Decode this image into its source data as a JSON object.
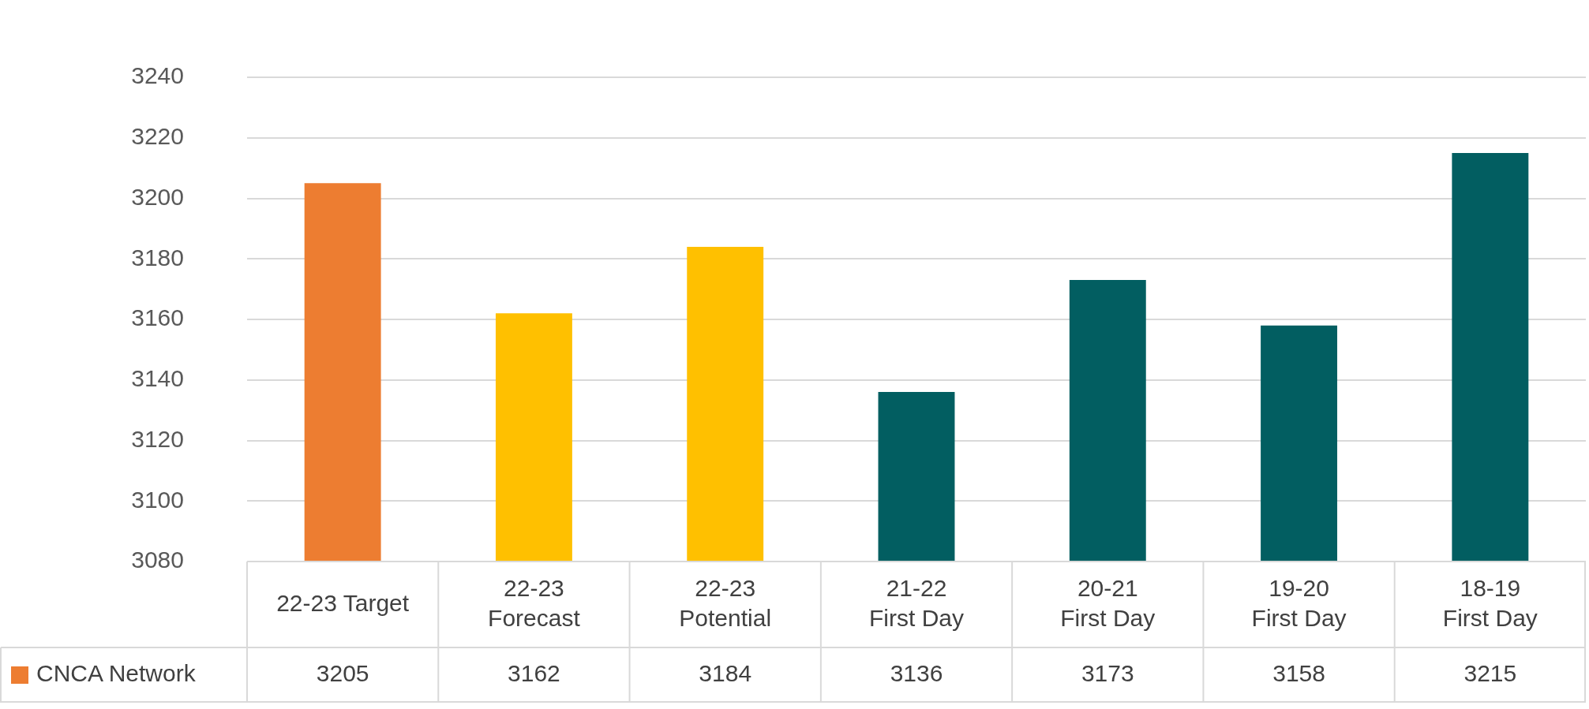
{
  "chart_data": {
    "type": "bar",
    "categories": [
      "22-23 Target",
      "22-23 Forecast",
      "22-23 Potential",
      "21-22 First Day",
      "20-21 First Day",
      "19-20 First Day",
      "18-19 First Day"
    ],
    "series": [
      {
        "name": "CNCA Network",
        "colors": [
          "#ed7d31",
          "#ffc000",
          "#ffc000",
          "#025e61",
          "#025e61",
          "#025e61",
          "#025e61"
        ],
        "values": [
          3205,
          3162,
          3184,
          3136,
          3173,
          3158,
          3215
        ]
      }
    ],
    "ylim": [
      3080,
      3240
    ],
    "yticks": [
      3080,
      3100,
      3120,
      3140,
      3160,
      3180,
      3200,
      3220,
      3240
    ],
    "grid": "y",
    "legend": "bottom left",
    "data_labels": true
  }
}
